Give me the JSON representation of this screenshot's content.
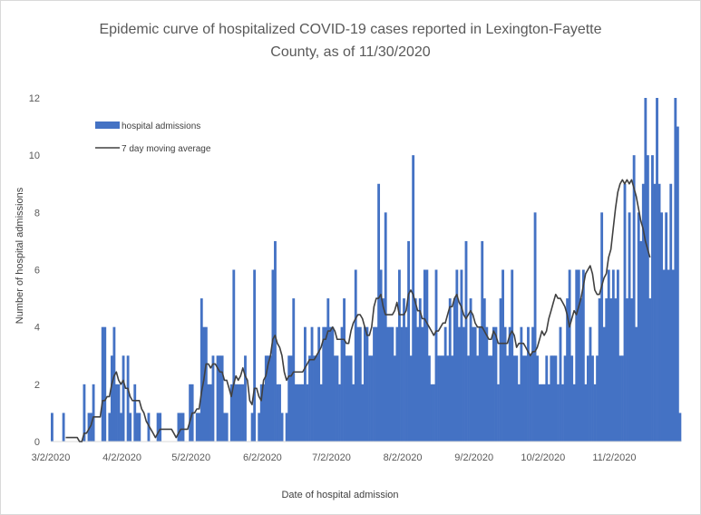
{
  "chart_data": {
    "type": "bar",
    "title_line1": "Epidemic curve of hospitalized COVID-19 cases reported in Lexington-Fayette",
    "title_line2": "County, as of 11/30/2020",
    "xlabel": "Date of hospital admission",
    "ylabel": "Number of hospital admissions",
    "ylim": [
      0,
      12
    ],
    "yticks": [
      0,
      2,
      4,
      6,
      8,
      10,
      12
    ],
    "grid": false,
    "legend_position": "top-left",
    "colors": {
      "bars": "#4472C4",
      "line": "#404040",
      "text": "#595959"
    },
    "x_start": "2020-03-02",
    "xtick_labels": [
      "3/2/2020",
      "4/2/2020",
      "5/2/2020",
      "6/2/2020",
      "7/2/2020",
      "8/2/2020",
      "9/2/2020",
      "10/2/2020",
      "11/2/2020"
    ],
    "xtick_dates": [
      "2020-03-02",
      "2020-04-02",
      "2020-05-02",
      "2020-06-02",
      "2020-07-02",
      "2020-08-02",
      "2020-09-02",
      "2020-10-02",
      "2020-11-02"
    ],
    "series": [
      {
        "name": "hospital admissions",
        "kind": "bar",
        "values": [
          1,
          0,
          0,
          0,
          0,
          1,
          0,
          0,
          0,
          0,
          0,
          0,
          0,
          0,
          2,
          0,
          1,
          1,
          2,
          0,
          0,
          0,
          4,
          4,
          0,
          1,
          3,
          4,
          2,
          2,
          1,
          3,
          0,
          3,
          1,
          0,
          2,
          1,
          1,
          0,
          0,
          0,
          1,
          0,
          0,
          0,
          1,
          1,
          0,
          0,
          0,
          0,
          0,
          0,
          0,
          1,
          1,
          1,
          0,
          0,
          2,
          2,
          0,
          1,
          1,
          5,
          4,
          4,
          2,
          2,
          3,
          0,
          3,
          3,
          3,
          1,
          1,
          0,
          2,
          6,
          2,
          2,
          2,
          2,
          3,
          0,
          0,
          1,
          6,
          0,
          1,
          2,
          2,
          3,
          3,
          3,
          6,
          7,
          2,
          2,
          1,
          0,
          1,
          3,
          3,
          5,
          2,
          2,
          2,
          2,
          4,
          2,
          3,
          4,
          3,
          3,
          4,
          2,
          4,
          4,
          5,
          4,
          4,
          3,
          3,
          2,
          4,
          5,
          3,
          3,
          3,
          2,
          6,
          4,
          4,
          2,
          4,
          4,
          3,
          3,
          4,
          4,
          9,
          6,
          5,
          8,
          4,
          4,
          4,
          3,
          4,
          6,
          4,
          5,
          4,
          7,
          3,
          10,
          5,
          4,
          5,
          4,
          6,
          6,
          3,
          2,
          2,
          6,
          3,
          3,
          3,
          4,
          3,
          5,
          3,
          5,
          6,
          4,
          6,
          4,
          7,
          3,
          5,
          4,
          4,
          3,
          4,
          7,
          5,
          4,
          3,
          3,
          4,
          4,
          2,
          5,
          6,
          4,
          3,
          4,
          6,
          3,
          3,
          2,
          4,
          3,
          3,
          4,
          3,
          4,
          8,
          3,
          2,
          2,
          2,
          3,
          2,
          3,
          3,
          3,
          2,
          4,
          2,
          3,
          5,
          6,
          3,
          2,
          6,
          6,
          5,
          6,
          2,
          3,
          4,
          3,
          2,
          3,
          5,
          8,
          4,
          5,
          6,
          5,
          6,
          5,
          6,
          3,
          3,
          9,
          5,
          8,
          5,
          10,
          4,
          8,
          7,
          9,
          12,
          10,
          5,
          10,
          9,
          12,
          9,
          8,
          6,
          8,
          6,
          9,
          6,
          12,
          11,
          1
        ]
      },
      {
        "name": "7 day moving average",
        "kind": "line",
        "values": [
          null,
          null,
          null,
          null,
          null,
          null,
          0.14,
          0.14,
          0.14,
          0.14,
          0.14,
          0.14,
          0.0,
          0.0,
          0.29,
          0.29,
          0.43,
          0.57,
          0.86,
          0.86,
          0.86,
          0.86,
          1.43,
          1.43,
          1.57,
          1.57,
          2.0,
          2.29,
          2.43,
          2.14,
          2.0,
          2.14,
          1.86,
          1.86,
          1.57,
          1.43,
          1.43,
          1.43,
          1.43,
          1.14,
          1.0,
          0.71,
          0.57,
          0.43,
          0.29,
          0.14,
          0.29,
          0.43,
          0.43,
          0.43,
          0.43,
          0.43,
          0.43,
          0.29,
          0.14,
          0.29,
          0.43,
          0.43,
          0.43,
          0.43,
          0.71,
          1.0,
          1.0,
          1.14,
          1.14,
          1.71,
          2.14,
          2.71,
          2.71,
          2.57,
          2.71,
          2.71,
          2.57,
          2.43,
          2.43,
          2.14,
          2.14,
          1.86,
          1.57,
          2.0,
          2.29,
          2.14,
          2.29,
          2.57,
          2.29,
          2.14,
          1.43,
          1.29,
          1.86,
          1.86,
          1.57,
          1.43,
          2.14,
          2.29,
          2.71,
          3.0,
          3.57,
          3.71,
          3.43,
          3.29,
          3.0,
          2.43,
          2.14,
          2.29,
          2.29,
          2.43,
          2.43,
          2.43,
          2.43,
          2.43,
          2.57,
          2.71,
          2.86,
          2.86,
          2.86,
          3.0,
          3.14,
          3.29,
          3.57,
          3.57,
          3.86,
          3.86,
          4.0,
          3.86,
          3.57,
          3.57,
          3.57,
          3.57,
          3.43,
          3.43,
          3.86,
          4.14,
          4.29,
          4.43,
          4.43,
          4.29,
          4.0,
          3.71,
          3.71,
          4.0,
          4.71,
          5.0,
          5.0,
          5.14,
          4.71,
          4.43,
          4.43,
          4.43,
          4.43,
          4.57,
          4.86,
          4.43,
          4.43,
          4.43,
          4.57,
          5.14,
          5.29,
          5.14,
          4.86,
          4.57,
          4.57,
          4.29,
          4.29,
          4.14,
          4.0,
          3.86,
          3.71,
          3.86,
          3.86,
          4.0,
          4.14,
          4.14,
          4.43,
          4.71,
          4.71,
          5.0,
          5.14,
          4.86,
          4.71,
          4.43,
          4.29,
          4.43,
          4.57,
          4.43,
          4.14,
          4.0,
          4.0,
          4.0,
          3.86,
          3.71,
          3.57,
          3.57,
          3.86,
          3.71,
          3.43,
          3.43,
          3.43,
          3.43,
          3.43,
          3.71,
          3.86,
          3.71,
          3.29,
          3.43,
          3.43,
          3.43,
          3.29,
          3.14,
          3.0,
          3.14,
          3.14,
          3.29,
          3.57,
          3.86,
          3.71,
          3.86,
          4.29,
          4.57,
          4.86,
          5.14,
          5.0,
          5.0,
          4.86,
          4.71,
          4.43,
          4.0,
          4.29,
          4.57,
          4.43,
          4.71,
          5.0,
          5.43,
          5.86,
          6.0,
          6.14,
          5.86,
          5.29,
          5.14,
          5.14,
          5.43,
          5.71,
          5.86,
          6.43,
          6.71,
          7.43,
          8.14,
          8.71,
          9.0,
          9.14,
          9.0,
          9.14,
          9.0,
          9.14,
          8.86,
          8.57,
          8.14,
          7.71,
          7.43,
          7.0,
          6.71,
          6.43
        ]
      }
    ]
  }
}
